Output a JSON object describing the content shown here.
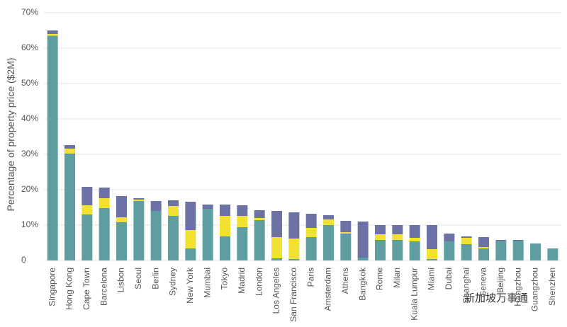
{
  "chart_data": {
    "type": "stacked_bar",
    "y_label": "Percentage of property price ($2M)",
    "watermark": "新加坡万事通",
    "categories": [
      "Singapore",
      "Hong Kong",
      "Cape Town",
      "Barcelona",
      "Lisbon",
      "Seoul",
      "Berlin",
      "Sydney",
      "New York",
      "Mumbai",
      "Tokyo",
      "Madrid",
      "London",
      "Los Angeles",
      "San Francisco",
      "Paris",
      "Amsterdam",
      "Athens",
      "Bangkok",
      "Rome",
      "Milan",
      "Kuala Lumpur",
      "Miami",
      "Dubai",
      "Shanghai",
      "Geneva",
      "Beijing",
      "Hangzhou",
      "Guangzhou",
      "Shenzhen"
    ],
    "series": [
      {
        "color": "#5f9ea0",
        "values": [
          63.5,
          30.2,
          13,
          14.8,
          10.8,
          16.8,
          14,
          12.6,
          3.4,
          14.6,
          6.8,
          9.4,
          11.4,
          0.6,
          0.4,
          6.6,
          10,
          7.6,
          0.8,
          5.8,
          5.8,
          5.4,
          0.4,
          5.4,
          4.6,
          3.4,
          5.6,
          5.6,
          4.8,
          3.4
        ]
      },
      {
        "color": "#f2e130",
        "values": [
          0.5,
          1.4,
          2.6,
          2.8,
          1.4,
          0.4,
          0,
          2.8,
          5.2,
          0,
          5.8,
          3.2,
          0.6,
          6,
          5.8,
          2.6,
          1.6,
          0.4,
          0,
          1.6,
          1.6,
          1,
          2.8,
          0,
          1.8,
          0.4,
          0,
          0,
          0,
          0
        ]
      },
      {
        "color": "#6c72a6",
        "values": [
          1,
          1,
          5.2,
          3,
          6,
          0.4,
          2.8,
          1.6,
          8,
          1.2,
          3.2,
          3,
          2.2,
          7.4,
          7.4,
          4,
          1.2,
          3.2,
          10.2,
          2.6,
          2.6,
          3.6,
          6.8,
          2.2,
          0.4,
          2.8,
          0.2,
          0.2,
          0,
          0
        ]
      }
    ],
    "ylim": [
      0,
      70
    ],
    "yticks": [
      0,
      {
        "value": 10,
        "label": "10%"
      },
      {
        "value": 20,
        "label": "20%"
      },
      {
        "value": 30,
        "label": "30%"
      },
      {
        "value": 40,
        "label": "40%"
      },
      {
        "value": 50,
        "label": "50%"
      },
      {
        "value": 60,
        "label": "60%"
      },
      {
        "value": 70,
        "label": "70%"
      }
    ],
    "grid": true
  }
}
